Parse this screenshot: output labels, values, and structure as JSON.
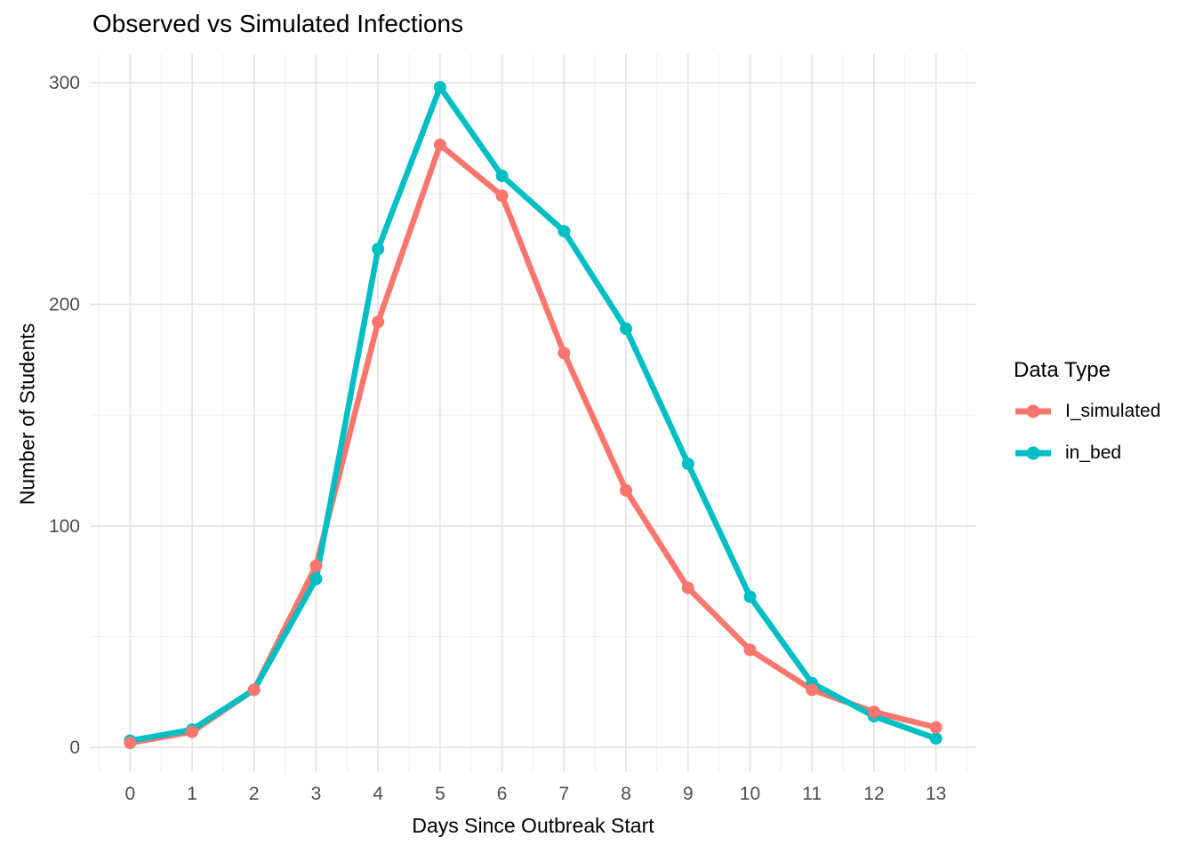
{
  "chart_data": {
    "type": "line",
    "title": "Observed vs Simulated Infections",
    "xlabel": "Days Since Outbreak Start",
    "ylabel": "Number of Students",
    "x": [
      0,
      1,
      2,
      3,
      4,
      5,
      6,
      7,
      8,
      9,
      10,
      11,
      12,
      13
    ],
    "series": [
      {
        "name": "I_simulated",
        "color": "#F8766D",
        "values": [
          2,
          7,
          26,
          82,
          192,
          272,
          249,
          178,
          116,
          72,
          44,
          26,
          16,
          9
        ]
      },
      {
        "name": "in_bed",
        "color": "#00BFC4",
        "values": [
          3,
          8,
          26,
          76,
          225,
          298,
          258,
          233,
          189,
          128,
          68,
          29,
          14,
          4
        ]
      }
    ],
    "legend": {
      "title": "Data Type",
      "position": "right"
    },
    "axes": {
      "x": {
        "ticks": [
          0,
          1,
          2,
          3,
          4,
          5,
          6,
          7,
          8,
          9,
          10,
          11,
          12,
          13
        ],
        "lim": [
          -0.65,
          13.65
        ]
      },
      "y": {
        "ticks": [
          0,
          100,
          200,
          300
        ],
        "minor": [
          50,
          150,
          250
        ],
        "lim": [
          -12,
          312.9
        ]
      }
    },
    "grid": {
      "major_color": "#E2E2E2",
      "minor_color": "#EFEFEF",
      "background": "#FFFFFF"
    },
    "tick_label_color": "#4D4D4D"
  }
}
